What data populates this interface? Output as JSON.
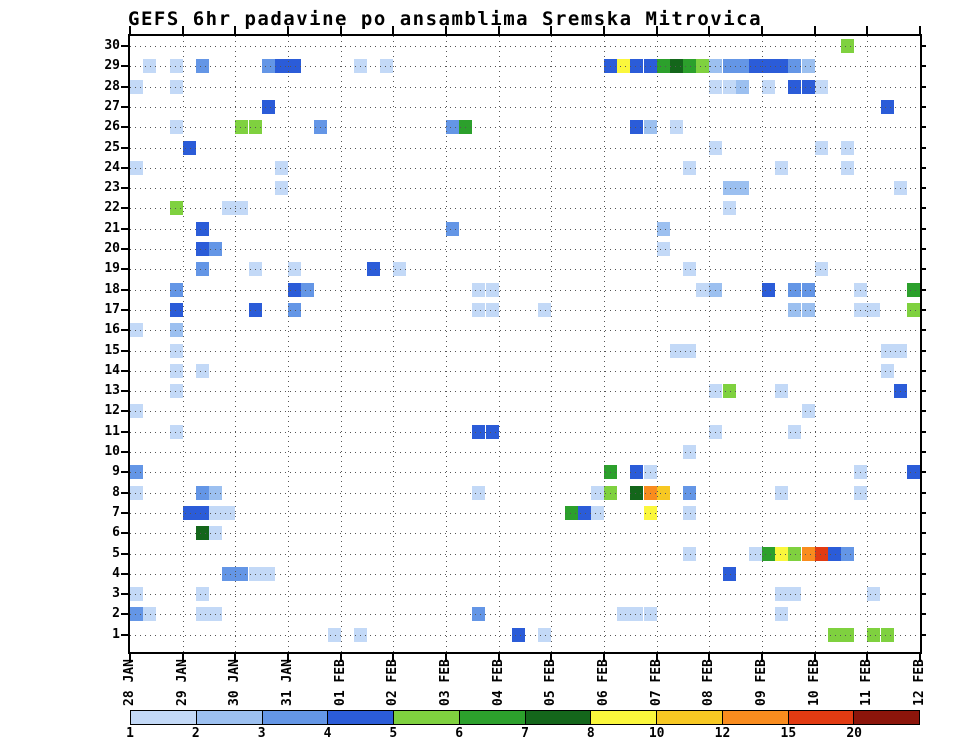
{
  "chart_data": {
    "type": "heatmap",
    "title": "GEFS 6hr padavine po ansamblima Sremska Mitrovica",
    "x_axis": {
      "tick_labels": [
        "28 JAN",
        "29 JAN",
        "30 JAN",
        "31 JAN",
        "01 FEB",
        "02 FEB",
        "03 FEB",
        "04 FEB",
        "05 FEB",
        "06 FEB",
        "07 FEB",
        "08 FEB",
        "09 FEB",
        "10 FEB",
        "11 FEB",
        "12 FEB"
      ],
      "slots_per_day": 4,
      "total_slots": 60
    },
    "y_axis": {
      "tick_labels": [
        "1",
        "2",
        "3",
        "4",
        "5",
        "6",
        "7",
        "8",
        "9",
        "10",
        "11",
        "12",
        "13",
        "14",
        "15",
        "16",
        "17",
        "18",
        "19",
        "20",
        "21",
        "22",
        "23",
        "24",
        "25",
        "26",
        "27",
        "28",
        "29",
        "30"
      ]
    },
    "colorbar": {
      "tick_labels": [
        "1",
        "2",
        "3",
        "4",
        "5",
        "6",
        "7",
        "8",
        "10",
        "12",
        "15",
        "20"
      ],
      "bin_edges": [
        1,
        2,
        3,
        4,
        5,
        6,
        7,
        8,
        10,
        12,
        15,
        20
      ],
      "bin_note": "bin i covers bin_edges[i-1]..bin_edges[i]; bin 12 is greater than 20",
      "colors": [
        "#c3d9f7",
        "#9cc0f0",
        "#6496e6",
        "#2b5cd8",
        "#7fd13f",
        "#2ca02c",
        "#14661b",
        "#fbf73c",
        "#f7c823",
        "#f98c1e",
        "#e23b12",
        "#8c150b"
      ]
    },
    "cells_format": "[member, time_slot(6hr steps from 28 JAN 00z), color_bin 1-12]",
    "cells": [
      [
        30,
        54,
        5
      ],
      [
        29,
        1,
        1
      ],
      [
        29,
        3,
        1
      ],
      [
        29,
        5,
        3
      ],
      [
        29,
        10,
        3
      ],
      [
        29,
        11,
        4
      ],
      [
        29,
        12,
        4
      ],
      [
        29,
        17,
        1
      ],
      [
        29,
        19,
        1
      ],
      [
        29,
        36,
        4
      ],
      [
        29,
        37,
        8
      ],
      [
        29,
        38,
        4
      ],
      [
        29,
        39,
        4
      ],
      [
        29,
        40,
        6
      ],
      [
        29,
        41,
        7
      ],
      [
        29,
        42,
        6
      ],
      [
        29,
        43,
        5
      ],
      [
        29,
        44,
        2
      ],
      [
        29,
        45,
        3
      ],
      [
        29,
        46,
        3
      ],
      [
        29,
        47,
        4
      ],
      [
        29,
        48,
        4
      ],
      [
        29,
        49,
        4
      ],
      [
        29,
        50,
        3
      ],
      [
        29,
        51,
        2
      ],
      [
        28,
        0,
        1
      ],
      [
        28,
        3,
        1
      ],
      [
        28,
        44,
        1
      ],
      [
        28,
        45,
        1
      ],
      [
        28,
        46,
        2
      ],
      [
        28,
        48,
        1
      ],
      [
        28,
        50,
        4
      ],
      [
        28,
        51,
        4
      ],
      [
        28,
        52,
        1
      ],
      [
        27,
        10,
        4
      ],
      [
        27,
        57,
        4
      ],
      [
        26,
        3,
        1
      ],
      [
        26,
        8,
        5
      ],
      [
        26,
        9,
        5
      ],
      [
        26,
        14,
        3
      ],
      [
        26,
        24,
        3
      ],
      [
        26,
        25,
        6
      ],
      [
        26,
        38,
        4
      ],
      [
        26,
        39,
        2
      ],
      [
        26,
        41,
        1
      ],
      [
        25,
        4,
        4
      ],
      [
        25,
        44,
        1
      ],
      [
        25,
        52,
        1
      ],
      [
        25,
        54,
        1
      ],
      [
        24,
        0,
        1
      ],
      [
        24,
        11,
        1
      ],
      [
        24,
        42,
        1
      ],
      [
        24,
        49,
        1
      ],
      [
        24,
        54,
        1
      ],
      [
        23,
        11,
        1
      ],
      [
        23,
        45,
        2
      ],
      [
        23,
        46,
        2
      ],
      [
        23,
        58,
        1
      ],
      [
        22,
        3,
        5
      ],
      [
        22,
        7,
        1
      ],
      [
        22,
        8,
        1
      ],
      [
        22,
        45,
        1
      ],
      [
        21,
        5,
        4
      ],
      [
        21,
        24,
        3
      ],
      [
        21,
        40,
        2
      ],
      [
        20,
        5,
        4
      ],
      [
        20,
        6,
        3
      ],
      [
        20,
        40,
        1
      ],
      [
        19,
        5,
        3
      ],
      [
        19,
        9,
        1
      ],
      [
        19,
        12,
        1
      ],
      [
        19,
        18,
        4
      ],
      [
        19,
        20,
        1
      ],
      [
        19,
        42,
        1
      ],
      [
        19,
        52,
        1
      ],
      [
        18,
        3,
        3
      ],
      [
        18,
        12,
        4
      ],
      [
        18,
        13,
        3
      ],
      [
        18,
        26,
        1
      ],
      [
        18,
        27,
        1
      ],
      [
        18,
        43,
        1
      ],
      [
        18,
        44,
        2
      ],
      [
        18,
        48,
        4
      ],
      [
        18,
        50,
        3
      ],
      [
        18,
        51,
        3
      ],
      [
        18,
        55,
        1
      ],
      [
        18,
        59,
        6
      ],
      [
        17,
        3,
        4
      ],
      [
        17,
        9,
        4
      ],
      [
        17,
        12,
        3
      ],
      [
        17,
        26,
        1
      ],
      [
        17,
        27,
        1
      ],
      [
        17,
        31,
        1
      ],
      [
        17,
        50,
        2
      ],
      [
        17,
        51,
        2
      ],
      [
        17,
        55,
        1
      ],
      [
        17,
        56,
        1
      ],
      [
        17,
        59,
        5
      ],
      [
        16,
        0,
        1
      ],
      [
        16,
        3,
        2
      ],
      [
        15,
        3,
        1
      ],
      [
        15,
        41,
        1
      ],
      [
        15,
        42,
        1
      ],
      [
        15,
        57,
        1
      ],
      [
        15,
        58,
        1
      ],
      [
        14,
        3,
        1
      ],
      [
        14,
        5,
        1
      ],
      [
        14,
        57,
        1
      ],
      [
        13,
        3,
        1
      ],
      [
        13,
        44,
        1
      ],
      [
        13,
        45,
        5
      ],
      [
        13,
        49,
        1
      ],
      [
        13,
        58,
        4
      ],
      [
        12,
        0,
        1
      ],
      [
        12,
        51,
        1
      ],
      [
        11,
        3,
        1
      ],
      [
        11,
        26,
        4
      ],
      [
        11,
        27,
        4
      ],
      [
        11,
        44,
        1
      ],
      [
        11,
        50,
        1
      ],
      [
        10,
        42,
        1
      ],
      [
        9,
        0,
        3
      ],
      [
        9,
        36,
        6
      ],
      [
        9,
        38,
        4
      ],
      [
        9,
        39,
        1
      ],
      [
        9,
        55,
        1
      ],
      [
        9,
        59,
        4
      ],
      [
        8,
        0,
        1
      ],
      [
        8,
        5,
        3
      ],
      [
        8,
        6,
        2
      ],
      [
        8,
        26,
        1
      ],
      [
        8,
        35,
        1
      ],
      [
        8,
        36,
        5
      ],
      [
        8,
        38,
        7
      ],
      [
        8,
        39,
        10
      ],
      [
        8,
        40,
        9
      ],
      [
        8,
        42,
        3
      ],
      [
        8,
        49,
        1
      ],
      [
        8,
        55,
        1
      ],
      [
        7,
        4,
        4
      ],
      [
        7,
        5,
        4
      ],
      [
        7,
        6,
        1
      ],
      [
        7,
        7,
        1
      ],
      [
        7,
        33,
        6
      ],
      [
        7,
        34,
        4
      ],
      [
        7,
        35,
        1
      ],
      [
        7,
        39,
        8
      ],
      [
        7,
        42,
        1
      ],
      [
        6,
        5,
        7
      ],
      [
        6,
        6,
        1
      ],
      [
        5,
        42,
        1
      ],
      [
        5,
        47,
        1
      ],
      [
        5,
        48,
        6
      ],
      [
        5,
        49,
        8
      ],
      [
        5,
        50,
        5
      ],
      [
        5,
        51,
        10
      ],
      [
        5,
        52,
        11
      ],
      [
        5,
        53,
        4
      ],
      [
        5,
        54,
        3
      ],
      [
        4,
        7,
        3
      ],
      [
        4,
        8,
        3
      ],
      [
        4,
        9,
        1
      ],
      [
        4,
        10,
        1
      ],
      [
        4,
        45,
        4
      ],
      [
        3,
        0,
        1
      ],
      [
        3,
        5,
        1
      ],
      [
        3,
        49,
        1
      ],
      [
        3,
        50,
        1
      ],
      [
        3,
        56,
        1
      ],
      [
        2,
        0,
        3
      ],
      [
        2,
        1,
        1
      ],
      [
        2,
        5,
        1
      ],
      [
        2,
        6,
        1
      ],
      [
        2,
        26,
        3
      ],
      [
        2,
        37,
        1
      ],
      [
        2,
        38,
        1
      ],
      [
        2,
        39,
        1
      ],
      [
        2,
        49,
        1
      ],
      [
        1,
        15,
        1
      ],
      [
        1,
        17,
        1
      ],
      [
        1,
        29,
        4
      ],
      [
        1,
        31,
        1
      ],
      [
        1,
        53,
        5
      ],
      [
        1,
        54,
        5
      ],
      [
        1,
        56,
        5
      ],
      [
        1,
        57,
        5
      ]
    ]
  }
}
